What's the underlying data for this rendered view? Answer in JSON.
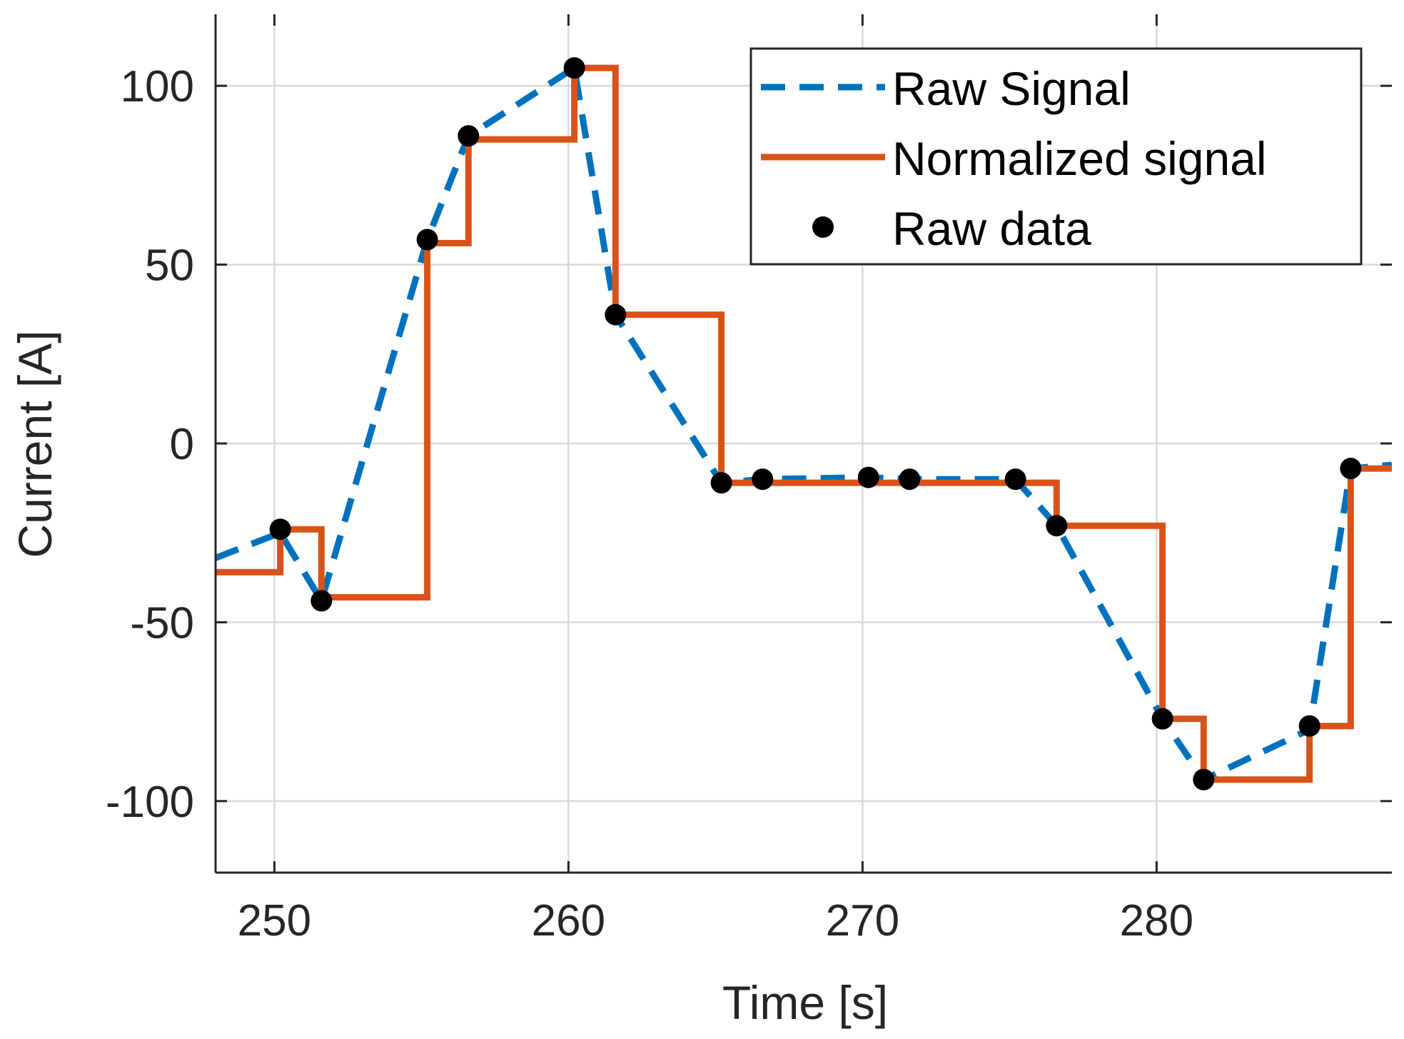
{
  "chart_data": {
    "type": "line",
    "title": "",
    "xlabel": "Time [s]",
    "ylabel": "Current [A]",
    "xlim": [
      248,
      288
    ],
    "ylim": [
      -120,
      120
    ],
    "xticks": [
      250,
      260,
      270,
      280
    ],
    "yticks": [
      100,
      50,
      0,
      -50,
      -100
    ],
    "xtick_labels": [
      "250",
      "260",
      "270",
      "280"
    ],
    "ytick_labels": [
      "100",
      "50",
      "0",
      "-50",
      "-100"
    ],
    "grid": true,
    "legend_position": "top-right",
    "series": [
      {
        "name": "Raw Signal",
        "style": "dashed",
        "color": "#0072BD",
        "x": [
          248,
          250.2,
          251.6,
          255.2,
          256.6,
          260.2,
          261.6,
          265.2,
          266.6,
          270.2,
          271.6,
          275.2,
          276.6,
          280.2,
          281.6,
          285.2,
          286.6,
          288
        ],
        "y": [
          -32,
          -25,
          -44,
          57,
          86,
          105,
          36,
          -11,
          -10,
          -9.5,
          -10,
          -10,
          -23,
          -77,
          -94,
          -80,
          -7,
          -6
        ]
      },
      {
        "name": "Normalized signal",
        "style": "solid",
        "color": "#D95319",
        "x": [
          248,
          250.2,
          251.6,
          255.2,
          256.6,
          260.2,
          261.6,
          265.2,
          266.6,
          270.2,
          271.6,
          275.2,
          276.6,
          280.2,
          281.6,
          285.2,
          286.6,
          288
        ],
        "y": [
          -36,
          -24,
          -43,
          56,
          85,
          105,
          36,
          -11,
          -11,
          -11,
          -11,
          -11,
          -23,
          -77,
          -94,
          -79,
          -7,
          -7
        ],
        "drawstyle": "steps-post"
      },
      {
        "name": "Raw data",
        "style": "markers",
        "color": "#000000",
        "x": [
          250.2,
          251.6,
          255.2,
          256.6,
          260.2,
          261.6,
          265.2,
          266.6,
          270.2,
          271.6,
          275.2,
          276.6,
          280.2,
          281.6,
          285.2,
          286.6
        ],
        "y": [
          -24,
          -44,
          57,
          86,
          105,
          36,
          -11,
          -10,
          -9.5,
          -10,
          -10,
          -23,
          -77,
          -94,
          -79,
          -7
        ]
      }
    ],
    "legend": [
      "Raw Signal",
      "Normalized signal",
      "Raw data"
    ]
  }
}
